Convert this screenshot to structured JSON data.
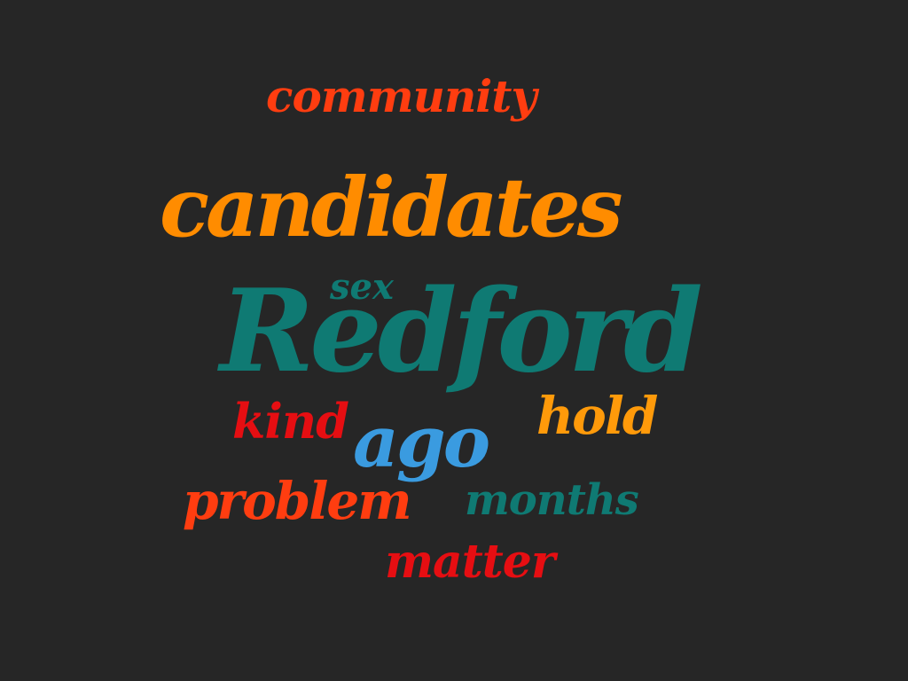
{
  "background": "#262626",
  "words": {
    "community": {
      "text": "community",
      "color": "#ff3d10"
    },
    "candidates": {
      "text": "candidates",
      "color": "#ff8c00"
    },
    "sex": {
      "text": "sex",
      "color": "#0f7a73"
    },
    "redford": {
      "text": "Redford",
      "color": "#0f7a73"
    },
    "kind": {
      "text": "kind",
      "color": "#e60e12"
    },
    "hold": {
      "text": "hold",
      "color": "#ff9a0a"
    },
    "ago": {
      "text": "ago",
      "color": "#3a9be0"
    },
    "problem": {
      "text": "problem",
      "color": "#ff3d10"
    },
    "months": {
      "text": "months",
      "color": "#0f7a73"
    },
    "matter": {
      "text": "matter",
      "color": "#e60e12"
    }
  }
}
